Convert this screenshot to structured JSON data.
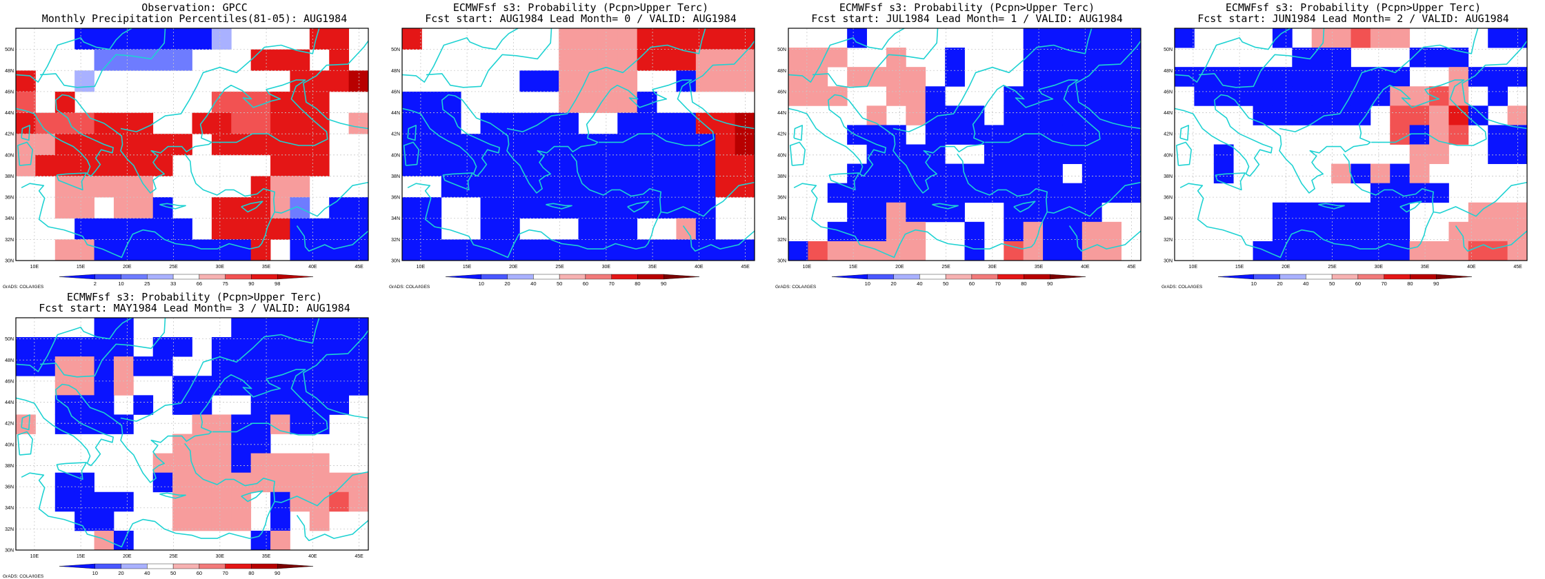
{
  "colors": {
    "blue": "#0a14ff",
    "blue_light": "#6e7cff",
    "blue_pale": "#a9b1ff",
    "red_pale": "#f79c9c",
    "red_mid": "#f25252",
    "red": "#e41616",
    "red_dark": "#b80000",
    "coast": "#1ed2d2",
    "grid": "#c8c8c8"
  },
  "map": {
    "lon_range": [
      8,
      46
    ],
    "lat_range": [
      30,
      52
    ],
    "projection": "cylindrical",
    "grid": true
  },
  "credit": "GrADS: COLA/IGES",
  "panels": [
    {
      "id": "obs",
      "title1": "Observation: GPCC",
      "title2": "Monthly Precipitation Percentiles(81-05): AUG1984",
      "xticks": [
        "10E",
        "15E",
        "20E",
        "25E",
        "30E",
        "35E",
        "40E",
        "45E"
      ],
      "yticks": [
        "30N",
        "32N",
        "34N",
        "36N",
        "38N",
        "40N",
        "42N",
        "44N",
        "46N",
        "48N",
        "50N"
      ],
      "colorbar": {
        "labels": [
          "2",
          "10",
          "25",
          "33",
          "66",
          "75",
          "90",
          "98"
        ],
        "colors": [
          "#0a14ff",
          "#3c4aff",
          "#6e7cff",
          "#a9b1ff",
          "#ffffff",
          "#f7b2b2",
          "#f25252",
          "#e41616",
          "#b80000"
        ]
      },
      "chart_data": {
        "type": "heatmap",
        "rows_top_to_bottom": [
          "...BBBBBBBQ....RR.",
          "....SSSSS...RRR.R.",
          "R..Q..........RRRD",
          "M.R.......MMMRRR..",
          "RMMMRRR..RRMMRRR.P",
          "PPRRRRRRR.RRRRRR..",
          "PRRRRRRR.....RRR..",
          "..PPPPP.....RPP...",
          "..PP.PPB..RRRPS.BB",
          "...BBBBBB.RRRRBBBB",
          "..PPBBBBBBBBR.BBBB"
        ],
        "legend": "B=blue(<2) S=blue-light(10-25) Q=blue-pale(25-33) .=neutral P=red-pale(66-75) M=red-mid(75-90) R=red(90-98) D=red-dark(>98)"
      }
    },
    {
      "id": "lead0",
      "title1": "ECMWFsf s3: Probability (Pcpn>Upper Terc)",
      "title2": "Fcst start: AUG1984  Lead Month= 0 / VALID: AUG1984",
      "xticks": [
        "10E",
        "15E",
        "20E",
        "25E",
        "30E",
        "35E",
        "40E",
        "45E"
      ],
      "yticks": [
        "30N",
        "32N",
        "34N",
        "36N",
        "38N",
        "40N",
        "42N",
        "44N",
        "46N",
        "48N",
        "50N"
      ],
      "colorbar": {
        "labels": [
          "10",
          "20",
          "40",
          "50",
          "60",
          "70",
          "80",
          "90"
        ],
        "colors": [
          "#0a14ff",
          "#4a58ff",
          "#a9b1ff",
          "#ffffff",
          "#f7b2b2",
          "#f27a7a",
          "#e41616",
          "#b80000",
          "#7a0000"
        ]
      },
      "chart_data": {
        "type": "heatmap",
        "rows_top_to_bottom": [
          "R.......PPPPRRRRRR",
          "........PPPPRRRPPP",
          "......BBPPPP..BPPP",
          "BBB.....PPPPB.....",
          "BBB.BBBBB..BBBBRRD",
          "BBBBBBBBBBBBBBBBRD",
          "BBBBBBBBBBBBBBBBRR",
          "..BBBBBBBBBBBBBBRR",
          "BB..BBBBBBBBBBBB..",
          "BB..BB...BBB..PB..",
          "BBBBBBBBBBBBBBBBBB"
        ],
        "legend": "B=blue(10-20) .=neutral P=red-pale(50-60) R=red(60-80) D=red-dark(>80)"
      }
    },
    {
      "id": "lead1",
      "title1": "ECMWFsf s3: Probability (Pcpn>Upper Terc)",
      "title2": "Fcst start: JUL1984  Lead Month= 1 / VALID: AUG1984",
      "xticks": [
        "10E",
        "15E",
        "20E",
        "25E",
        "30E",
        "35E",
        "40E",
        "45E"
      ],
      "yticks": [
        "30N",
        "32N",
        "34N",
        "36N",
        "38N",
        "40N",
        "42N",
        "44N",
        "46N",
        "48N",
        "50N"
      ],
      "colorbar": {
        "labels": [
          "10",
          "20",
          "40",
          "50",
          "60",
          "70",
          "80",
          "90"
        ],
        "colors": [
          "#0a14ff",
          "#4a58ff",
          "#a9b1ff",
          "#ffffff",
          "#f7b2b2",
          "#f27a7a",
          "#e41616",
          "#b80000",
          "#7a0000"
        ]
      },
      "chart_data": {
        "type": "heatmap",
        "rows_top_to_bottom": [
          "...B........BBBBBB",
          "PPP..P..B...BBBBBB",
          "PP.PPPP.B...BBBBBB",
          "PPP..PPB...BBBBBBB",
          "....P.PBBB.BBBBBBB",
          "...BBB.BBBBBBBBBBB",
          "....BBBB..BBBBBBBB",
          "...BBBBBBBBBBB.BBB",
          "..BBBBBBBBBBBBBBBB",
          "...BBPBBB..BBBBB..",
          "..BBBPP..B.BPBBPP.",
          "BMPPPPP..B.MPBBPP."
        ],
        "legend": "B=blue(10-20) .=neutral P=red-pale(50-60) M=red-mid(60-70)"
      }
    },
    {
      "id": "lead2",
      "title1": "ECMWFsf s3: Probability (Pcpn>Upper Terc)",
      "title2": "Fcst start: JUN1984  Lead Month= 2 / VALID: AUG1984",
      "xticks": [
        "10E",
        "15E",
        "20E",
        "25E",
        "30E",
        "35E",
        "40E",
        "45E"
      ],
      "yticks": [
        "30N",
        "32N",
        "34N",
        "36N",
        "38N",
        "40N",
        "42N",
        "44N",
        "46N",
        "48N",
        "50N"
      ],
      "colorbar": {
        "labels": [
          "10",
          "20",
          "40",
          "50",
          "60",
          "70",
          "80",
          "90"
        ],
        "colors": [
          "#0a14ff",
          "#4a58ff",
          "#a9b1ff",
          "#ffffff",
          "#f7b2b2",
          "#f27a7a",
          "#e41616",
          "#b80000",
          "#7a0000"
        ]
      },
      "chart_data": {
        "type": "heatmap",
        "rows_top_to_bottom": [
          "B....B.PPMPP....BB",
          "......BBB...BBB...",
          "BBBBBBBBBBBB..PBBB",
          ".BBBBBBBBBBPPMP.B.",
          "....BBBBBB.MMPRB.P",
          "...........MBPM.BB",
          "..B.........PP..BB",
          "..B.....PBPBP.....",
          "..........BBBB....",
          ".....BBBBBBB...PPP",
          ".....BBBBBBB..PPPP",
          "....BBBBBBBBPPPMMP"
        ],
        "legend": "B=blue(10-20) .=neutral P=red-pale(50-60) M=red-mid(60-70) R=red(70-80)"
      }
    },
    {
      "id": "lead3",
      "title1": "ECMWFsf s3: Probability (Pcpn>Upper Terc)",
      "title2": "Fcst start: MAY1984  Lead Month= 3 / VALID: AUG1984",
      "xticks": [
        "10E",
        "15E",
        "20E",
        "25E",
        "30E",
        "35E",
        "40E",
        "45E"
      ],
      "yticks": [
        "30N",
        "32N",
        "34N",
        "36N",
        "38N",
        "40N",
        "42N",
        "44N",
        "46N",
        "48N",
        "50N"
      ],
      "colorbar": {
        "labels": [
          "10",
          "20",
          "40",
          "50",
          "60",
          "70",
          "80",
          "90"
        ],
        "colors": [
          "#0a14ff",
          "#4a58ff",
          "#a9b1ff",
          "#ffffff",
          "#f7b2b2",
          "#f27a7a",
          "#e41616",
          "#b80000",
          "#7a0000"
        ]
      },
      "chart_data": {
        "type": "heatmap",
        "rows_top_to_bottom": [
          "....BB.....BBBBBBB",
          "BBBBBB.BB.BBBBBBBB",
          "BBPPBPBB..BBBBBBBB",
          "..PPBP..BBBBBBBBBB",
          "..BBB.B.BB..BBBBB.",
          "P.BBBB...PPBBPBB..",
          "........PPPBB.....",
          ".......PPPPBPPPP..",
          "..BB...BPPPPPPPPPP",
          "..BBBB..PPPP.BPPMP",
          "...BB...PPPP.B.P..",
          "....PB......BP...."
        ],
        "legend": "B=blue(10-20) .=neutral P=red-pale(50-60) M=red-mid(60-70)"
      }
    }
  ]
}
